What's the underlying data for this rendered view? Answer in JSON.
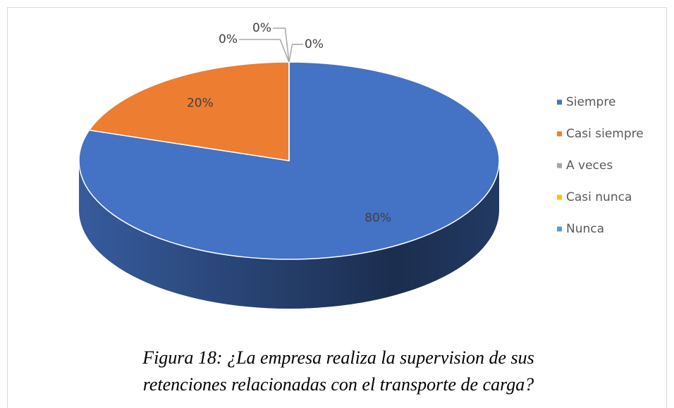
{
  "chart_data": {
    "type": "pie",
    "categories": [
      "Siempre",
      "Casi siempre",
      "A veces",
      "Casi nunca",
      "Nunca"
    ],
    "values": [
      80,
      20,
      0,
      0,
      0
    ],
    "value_labels": [
      "80%",
      "20%",
      "0%",
      "0%",
      "0%"
    ],
    "colors": [
      "#4472c4",
      "#ed7d31",
      "#a5a5a5",
      "#ffc000",
      "#5b9bd5"
    ],
    "legend": "right",
    "caption": [
      "Figura 18: ¿La empresa realiza la supervision de sus",
      "retenciones relacionadas con el transporte de carga?"
    ]
  }
}
